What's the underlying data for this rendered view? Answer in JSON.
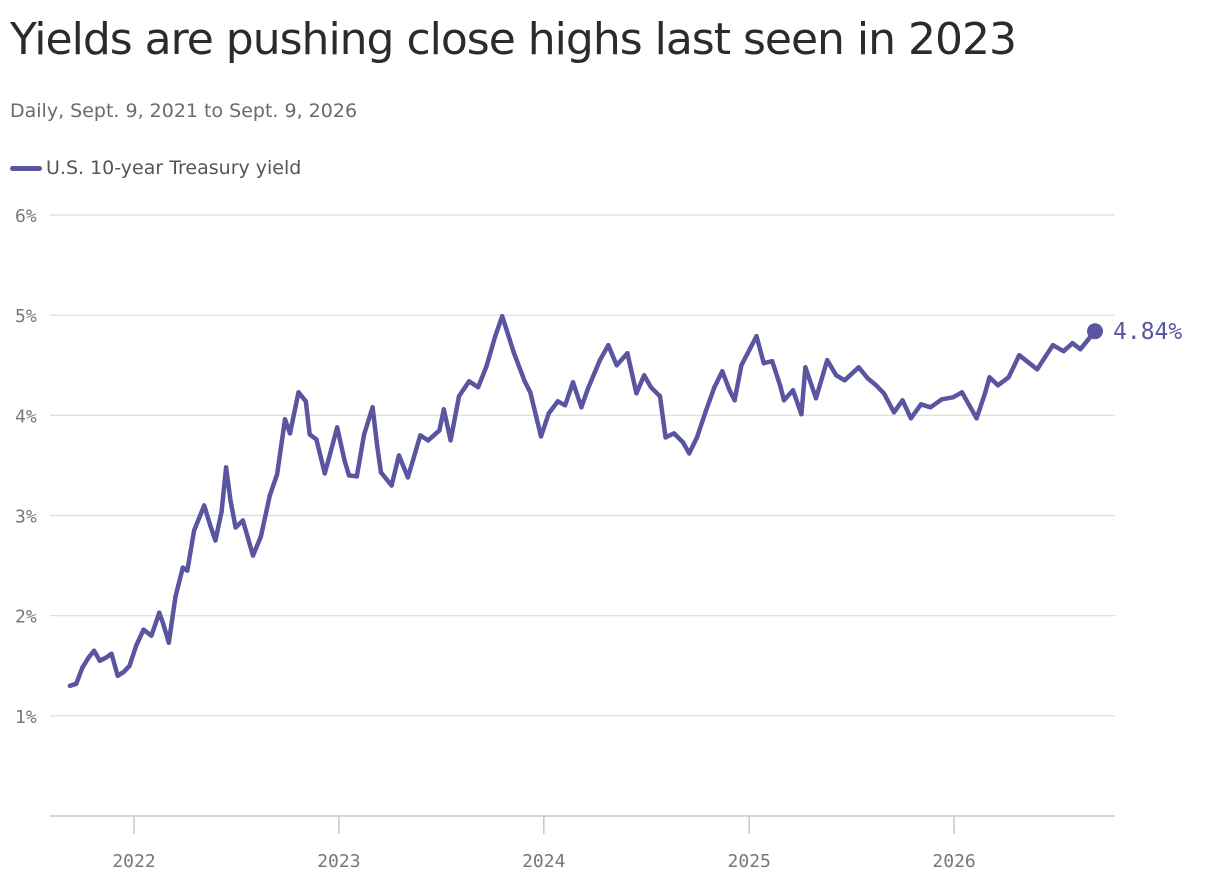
{
  "chart_data": {
    "type": "line",
    "title": "Yields are pushing close highs last seen in 2023",
    "subtitle": "Daily, Sept. 9, 2021 to Sept. 9, 2026",
    "xlabel": "",
    "ylabel": "",
    "ylim": [
      0,
      6
    ],
    "y_ticks": [
      {
        "value": 1,
        "label": "1%"
      },
      {
        "value": 2,
        "label": "2%"
      },
      {
        "value": 3,
        "label": "3%"
      },
      {
        "value": 4,
        "label": "4%"
      },
      {
        "value": 5,
        "label": "5%"
      },
      {
        "value": 6,
        "label": "6%"
      }
    ],
    "xlim": [
      "2021-09-09",
      "2026-09-09"
    ],
    "x_ticks": [
      {
        "value": "2022-01-01",
        "label": "2022"
      },
      {
        "value": "2023-01-01",
        "label": "2023"
      },
      {
        "value": "2024-01-01",
        "label": "2024"
      },
      {
        "value": "2025-01-01",
        "label": "2025"
      },
      {
        "value": "2026-01-01",
        "label": "2026"
      }
    ],
    "grid": true,
    "legend_position": "top-left",
    "series": [
      {
        "name": "U.S. 10-year Treasury yield",
        "color": "#5a55a0",
        "points": [
          [
            "2021-09-09",
            1.3
          ],
          [
            "2021-09-20",
            1.32
          ],
          [
            "2021-10-01",
            1.48
          ],
          [
            "2021-10-12",
            1.58
          ],
          [
            "2021-10-22",
            1.65
          ],
          [
            "2021-11-01",
            1.55
          ],
          [
            "2021-11-12",
            1.58
          ],
          [
            "2021-11-22",
            1.62
          ],
          [
            "2021-12-03",
            1.4
          ],
          [
            "2021-12-14",
            1.44
          ],
          [
            "2021-12-24",
            1.5
          ],
          [
            "2022-01-05",
            1.7
          ],
          [
            "2022-01-18",
            1.86
          ],
          [
            "2022-02-01",
            1.8
          ],
          [
            "2022-02-15",
            2.03
          ],
          [
            "2022-02-22",
            1.92
          ],
          [
            "2022-03-04",
            1.73
          ],
          [
            "2022-03-16",
            2.19
          ],
          [
            "2022-03-29",
            2.48
          ],
          [
            "2022-04-06",
            2.45
          ],
          [
            "2022-04-18",
            2.85
          ],
          [
            "2022-05-06",
            3.1
          ],
          [
            "2022-05-17",
            2.9
          ],
          [
            "2022-05-26",
            2.75
          ],
          [
            "2022-06-06",
            3.04
          ],
          [
            "2022-06-14",
            3.48
          ],
          [
            "2022-06-22",
            3.15
          ],
          [
            "2022-07-01",
            2.88
          ],
          [
            "2022-07-14",
            2.95
          ],
          [
            "2022-08-01",
            2.6
          ],
          [
            "2022-08-15",
            2.79
          ],
          [
            "2022-08-31",
            3.2
          ],
          [
            "2022-09-13",
            3.41
          ],
          [
            "2022-09-27",
            3.96
          ],
          [
            "2022-10-06",
            3.82
          ],
          [
            "2022-10-21",
            4.23
          ],
          [
            "2022-11-03",
            4.14
          ],
          [
            "2022-11-10",
            3.81
          ],
          [
            "2022-11-22",
            3.76
          ],
          [
            "2022-12-07",
            3.42
          ],
          [
            "2022-12-29",
            3.88
          ],
          [
            "2023-01-11",
            3.55
          ],
          [
            "2023-01-19",
            3.4
          ],
          [
            "2023-02-02",
            3.39
          ],
          [
            "2023-02-15",
            3.81
          ],
          [
            "2023-03-02",
            4.08
          ],
          [
            "2023-03-10",
            3.7
          ],
          [
            "2023-03-17",
            3.43
          ],
          [
            "2023-04-05",
            3.3
          ],
          [
            "2023-04-18",
            3.6
          ],
          [
            "2023-05-04",
            3.38
          ],
          [
            "2023-05-26",
            3.8
          ],
          [
            "2023-06-09",
            3.75
          ],
          [
            "2023-06-29",
            3.85
          ],
          [
            "2023-07-07",
            4.06
          ],
          [
            "2023-07-19",
            3.75
          ],
          [
            "2023-08-03",
            4.19
          ],
          [
            "2023-08-21",
            4.34
          ],
          [
            "2023-09-06",
            4.28
          ],
          [
            "2023-09-21",
            4.49
          ],
          [
            "2023-10-06",
            4.78
          ],
          [
            "2023-10-19",
            4.99
          ],
          [
            "2023-10-27",
            4.85
          ],
          [
            "2023-11-09",
            4.62
          ],
          [
            "2023-11-28",
            4.34
          ],
          [
            "2023-12-08",
            4.23
          ],
          [
            "2023-12-27",
            3.79
          ],
          [
            "2024-01-10",
            4.02
          ],
          [
            "2024-01-26",
            4.14
          ],
          [
            "2024-02-08",
            4.1
          ],
          [
            "2024-02-22",
            4.33
          ],
          [
            "2024-03-08",
            4.08
          ],
          [
            "2024-03-20",
            4.27
          ],
          [
            "2024-04-10",
            4.55
          ],
          [
            "2024-04-25",
            4.7
          ],
          [
            "2024-05-10",
            4.5
          ],
          [
            "2024-05-29",
            4.62
          ],
          [
            "2024-06-14",
            4.22
          ],
          [
            "2024-06-28",
            4.4
          ],
          [
            "2024-07-10",
            4.28
          ],
          [
            "2024-07-26",
            4.19
          ],
          [
            "2024-08-05",
            3.78
          ],
          [
            "2024-08-20",
            3.82
          ],
          [
            "2024-09-05",
            3.73
          ],
          [
            "2024-09-16",
            3.62
          ],
          [
            "2024-09-30",
            3.78
          ],
          [
            "2024-10-15",
            4.03
          ],
          [
            "2024-10-31",
            4.28
          ],
          [
            "2024-11-14",
            4.44
          ],
          [
            "2024-11-27",
            4.25
          ],
          [
            "2024-12-06",
            4.15
          ],
          [
            "2024-12-18",
            4.5
          ],
          [
            "2025-01-14",
            4.79
          ],
          [
            "2025-01-27",
            4.52
          ],
          [
            "2025-02-11",
            4.54
          ],
          [
            "2025-02-25",
            4.3
          ],
          [
            "2025-03-04",
            4.15
          ],
          [
            "2025-03-20",
            4.25
          ],
          [
            "2025-04-04",
            4.01
          ],
          [
            "2025-04-11",
            4.48
          ],
          [
            "2025-04-30",
            4.17
          ],
          [
            "2025-05-20",
            4.55
          ],
          [
            "2025-06-05",
            4.4
          ],
          [
            "2025-06-20",
            4.35
          ],
          [
            "2025-07-15",
            4.48
          ],
          [
            "2025-07-31",
            4.37
          ],
          [
            "2025-08-15",
            4.3
          ],
          [
            "2025-08-29",
            4.22
          ],
          [
            "2025-09-16",
            4.03
          ],
          [
            "2025-10-01",
            4.15
          ],
          [
            "2025-10-16",
            3.97
          ],
          [
            "2025-11-03",
            4.11
          ],
          [
            "2025-11-20",
            4.08
          ],
          [
            "2025-12-10",
            4.16
          ],
          [
            "2025-12-30",
            4.18
          ],
          [
            "2026-01-15",
            4.23
          ],
          [
            "2026-01-28",
            4.1
          ],
          [
            "2026-02-10",
            3.97
          ],
          [
            "2026-02-25",
            4.22
          ],
          [
            "2026-03-05",
            4.38
          ],
          [
            "2026-03-20",
            4.3
          ],
          [
            "2026-04-08",
            4.38
          ],
          [
            "2026-04-27",
            4.6
          ],
          [
            "2026-05-15",
            4.52
          ],
          [
            "2026-05-29",
            4.46
          ],
          [
            "2026-06-12",
            4.58
          ],
          [
            "2026-06-26",
            4.7
          ],
          [
            "2026-07-15",
            4.64
          ],
          [
            "2026-07-31",
            4.72
          ],
          [
            "2026-08-14",
            4.66
          ],
          [
            "2026-08-27",
            4.75
          ],
          [
            "2026-09-09",
            4.84
          ]
        ]
      }
    ],
    "end_label": "4.84%"
  }
}
